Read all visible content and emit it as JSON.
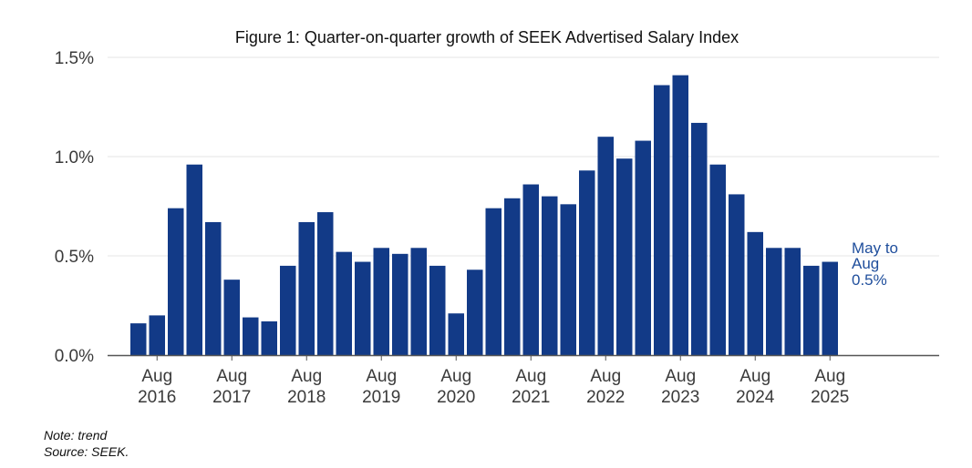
{
  "chart_data": {
    "type": "bar",
    "title": "Figure 1: Quarter-on-quarter growth of SEEK Advertised Salary Index",
    "xlabel": "",
    "ylabel": "",
    "ylim": [
      0,
      1.5
    ],
    "ytick_values": [
      0,
      0.5,
      1.0,
      1.5
    ],
    "ytick_labels": [
      "0.0%",
      "0.5%",
      "1.0%",
      "1.5%"
    ],
    "grid": true,
    "bar_color": "#123a87",
    "categories": [
      "May-2016",
      "Aug-2016",
      "Nov-2016",
      "Feb-2017",
      "May-2017",
      "Aug-2017",
      "Nov-2017",
      "Feb-2018",
      "May-2018",
      "Aug-2018",
      "Nov-2018",
      "Feb-2019",
      "May-2019",
      "Aug-2019",
      "Nov-2019",
      "Feb-2020",
      "May-2020",
      "Aug-2020",
      "Nov-2020",
      "Feb-2021",
      "May-2021",
      "Aug-2021",
      "Nov-2021",
      "Feb-2022",
      "May-2022",
      "Aug-2022",
      "Nov-2022",
      "Feb-2023",
      "May-2023",
      "Aug-2023",
      "Nov-2023",
      "Feb-2024",
      "May-2024",
      "Aug-2024",
      "Nov-2024",
      "Feb-2025",
      "May-2025",
      "Aug-2025"
    ],
    "values": [
      0.16,
      0.2,
      0.74,
      0.96,
      0.67,
      0.38,
      0.19,
      0.17,
      0.45,
      0.67,
      0.72,
      0.52,
      0.47,
      0.54,
      0.51,
      0.54,
      0.45,
      0.21,
      0.43,
      0.74,
      0.79,
      0.86,
      0.8,
      0.76,
      0.93,
      1.1,
      0.99,
      1.08,
      1.36,
      1.41,
      1.17,
      0.96,
      0.81,
      0.62,
      0.54,
      0.54,
      0.45,
      0.47
    ],
    "xtick_labels": [
      {
        "index": 1,
        "line1": "Aug",
        "line2": "2016"
      },
      {
        "index": 5,
        "line1": "Aug",
        "line2": "2017"
      },
      {
        "index": 9,
        "line1": "Aug",
        "line2": "2018"
      },
      {
        "index": 13,
        "line1": "Aug",
        "line2": "2019"
      },
      {
        "index": 17,
        "line1": "Aug",
        "line2": "2020"
      },
      {
        "index": 21,
        "line1": "Aug",
        "line2": "2021"
      },
      {
        "index": 25,
        "line1": "Aug",
        "line2": "2022"
      },
      {
        "index": 29,
        "line1": "Aug",
        "line2": "2023"
      },
      {
        "index": 33,
        "line1": "Aug",
        "line2": "2024"
      },
      {
        "index": 37,
        "line1": "Aug",
        "line2": "2025"
      }
    ],
    "annotation": {
      "lines": [
        "May to",
        "Aug",
        "0.5%"
      ],
      "color": "#1f4e9c"
    }
  },
  "note": "Note: trend",
  "source": "Source: SEEK."
}
